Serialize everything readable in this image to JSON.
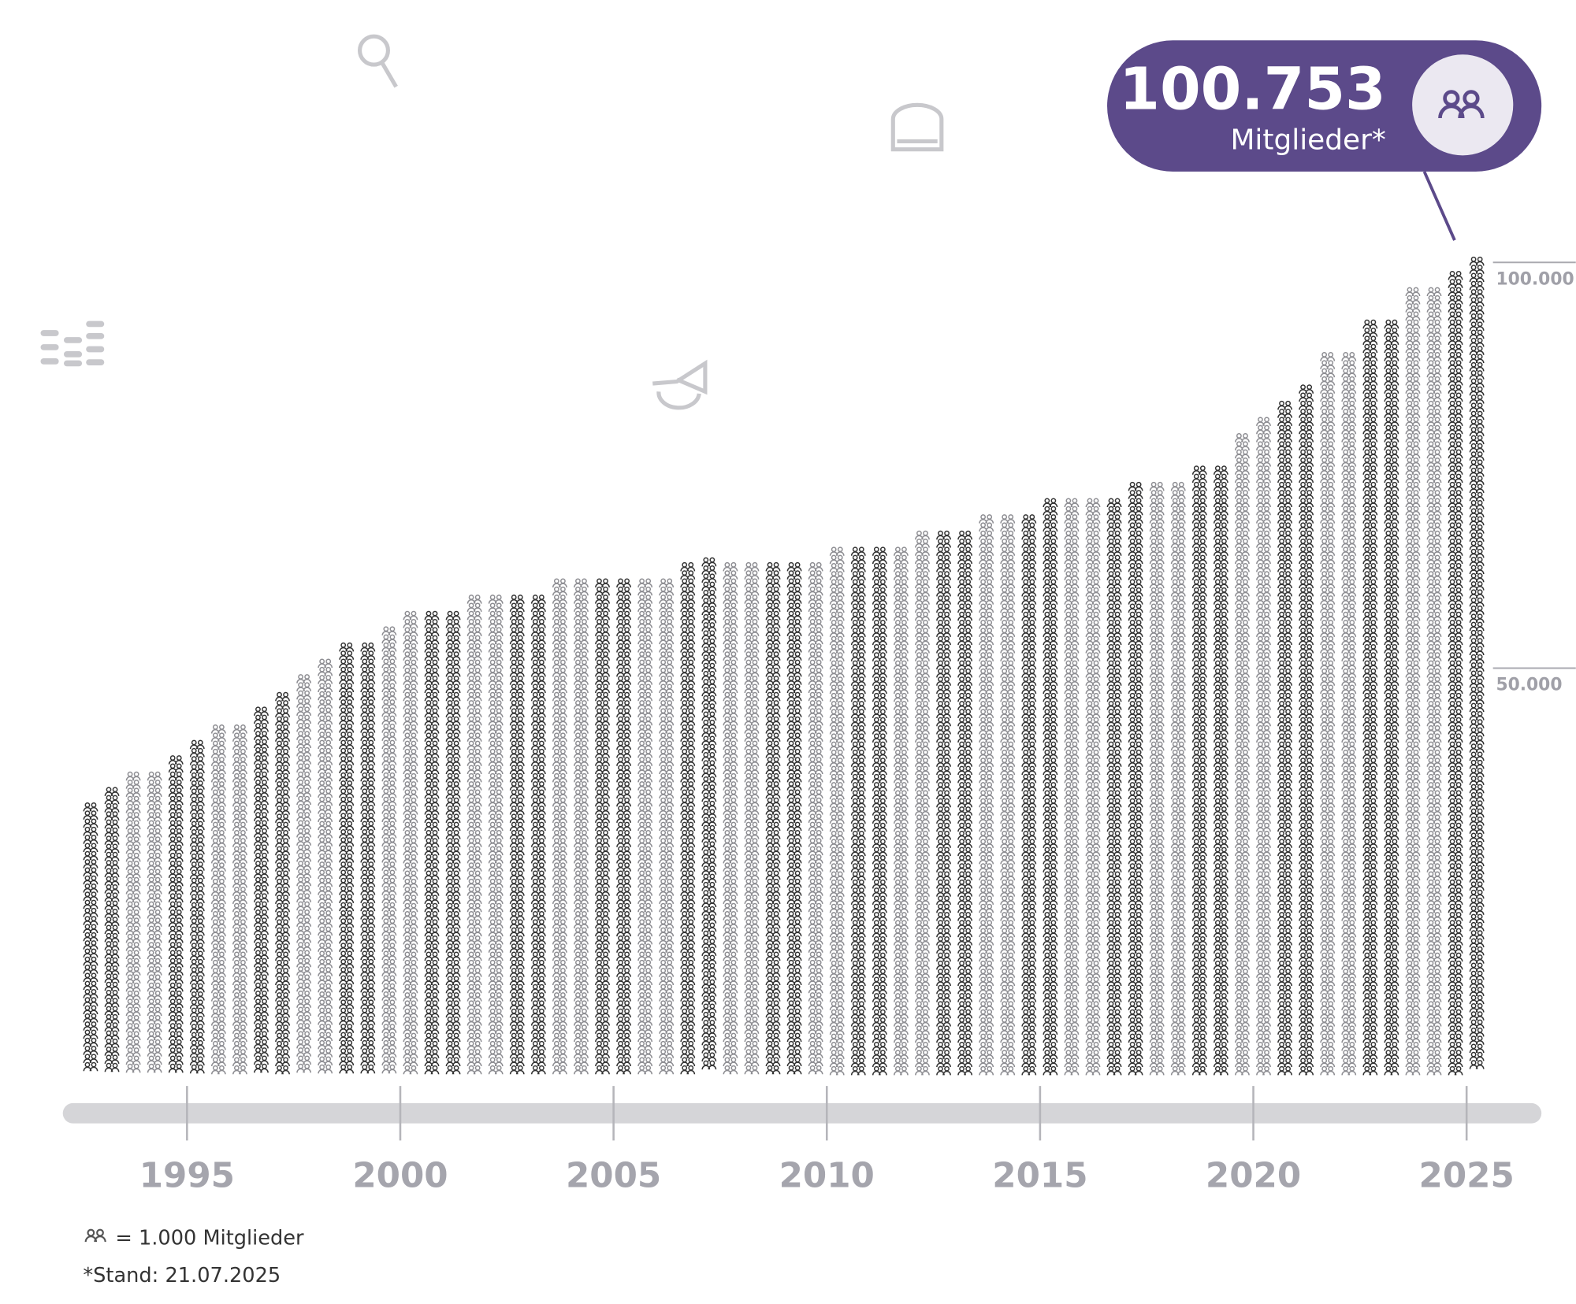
{
  "chart_data": {
    "type": "pictogram",
    "x": [
      1992.75,
      1993.25,
      1993.75,
      1994.25,
      1994.75,
      1995.25,
      1995.75,
      1996.25,
      1996.75,
      1997.25,
      1997.75,
      1998.25,
      1998.75,
      1999.25,
      1999.75,
      2000.25,
      2000.75,
      2001.25,
      2001.75,
      2002.25,
      2002.75,
      2003.25,
      2003.75,
      2004.25,
      2004.75,
      2005.25,
      2005.75,
      2006.25,
      2006.75,
      2007.25,
      2007.75,
      2008.25,
      2008.75,
      2009.25,
      2009.75,
      2010.25,
      2010.75,
      2011.25,
      2011.75,
      2012.25,
      2012.75,
      2013.25,
      2013.75,
      2014.25,
      2014.75,
      2015.25,
      2015.75,
      2016.25,
      2016.75,
      2017.25,
      2017.75,
      2018.25,
      2018.75,
      2019.25,
      2019.75,
      2020.25,
      2020.75,
      2021.25,
      2021.75,
      2022.25,
      2022.75,
      2023.25,
      2023.75,
      2024.25,
      2024.75,
      2025.25
    ],
    "values": [
      33500,
      35400,
      37300,
      37300,
      39300,
      41200,
      43100,
      43100,
      45300,
      47100,
      49300,
      51200,
      53200,
      53200,
      55200,
      57100,
      57100,
      57100,
      59100,
      59100,
      59100,
      59100,
      61100,
      61100,
      61100,
      61100,
      61100,
      61100,
      63100,
      63700,
      63100,
      63100,
      63100,
      63100,
      63100,
      65000,
      65000,
      65000,
      65000,
      67000,
      67000,
      67000,
      69000,
      69000,
      69000,
      71000,
      71000,
      71000,
      71000,
      73000,
      73000,
      73000,
      75000,
      75000,
      79000,
      81000,
      83000,
      85000,
      89000,
      89000,
      93000,
      93000,
      97000,
      97000,
      99000,
      100753
    ],
    "colors": [
      "#333333",
      "#8d8d92"
    ],
    "xlim": [
      1992.5,
      2025.5
    ],
    "xticks": [
      1995,
      2000,
      2005,
      2010,
      2015,
      2020,
      2025
    ],
    "ylim": [
      0,
      110000
    ],
    "yticks": [
      {
        "value": 50000,
        "label": "50.000"
      },
      {
        "value": 100000,
        "label": "100.000"
      }
    ],
    "annotation": {
      "value": "100.753",
      "label": "Mitglieder*"
    },
    "legend": "= 1.000 Mitglieder",
    "footnote": "*Stand: 21.07.2025"
  }
}
